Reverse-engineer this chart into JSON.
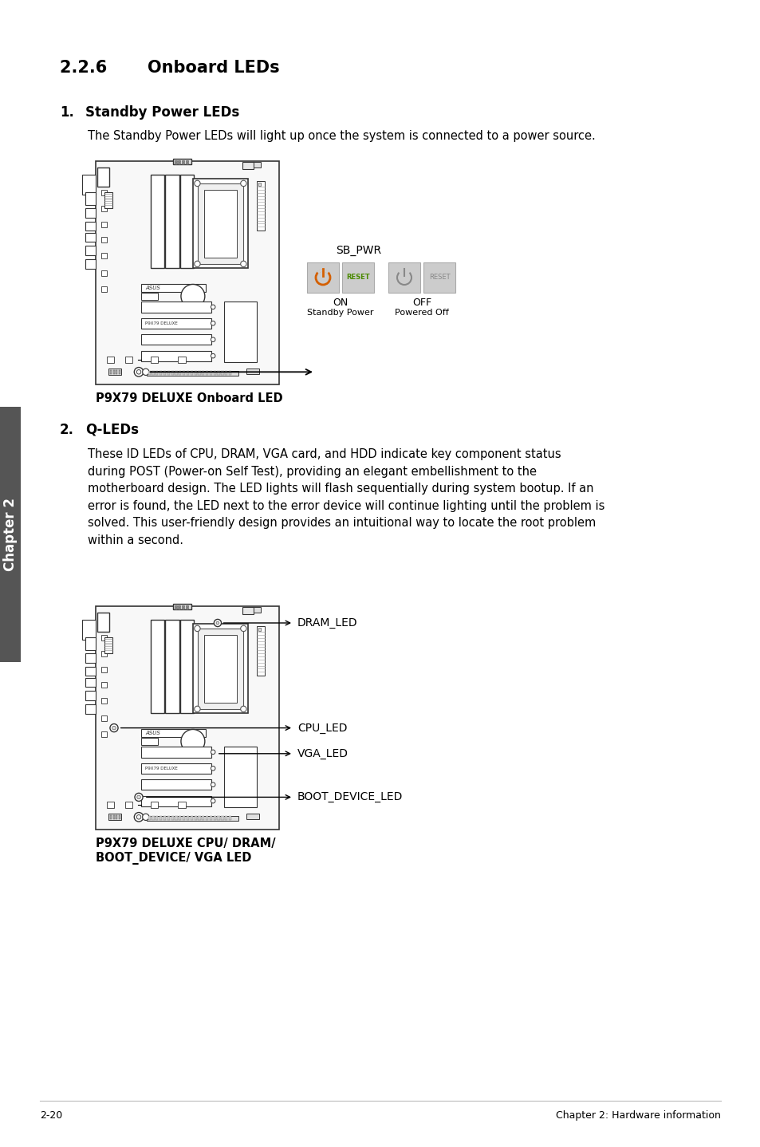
{
  "title": "2.2.6       Onboard LEDs",
  "section1_num": "1.",
  "section1_title": "Standby Power LEDs",
  "section1_body": "The Standby Power LEDs will light up once the system is connected to a power source.",
  "section1_caption": "P9X79 DELUXE Onboard LED",
  "sb_pwr_label": "SB_PWR",
  "on_label": "ON",
  "on_sub": "Standby Power",
  "off_label": "OFF",
  "off_sub": "Powered Off",
  "section2_num": "2.",
  "section2_title": "Q-LEDs",
  "section2_body": "These ID LEDs of CPU, DRAM, VGA card, and HDD indicate key component status\nduring POST (Power-on Self Test), providing an elegant embellishment to the\nmotherboard design. The LED lights will flash sequentially during system bootup. If an\nerror is found, the LED next to the error device will continue lighting until the problem is\nsolved. This user-friendly design provides an intuitional way to locate the root problem\nwithin a second.",
  "section2_caption1": "P9X79 DELUXE CPU/ DRAM/",
  "section2_caption2": "BOOT_DEVICE/ VGA LED",
  "led_labels": [
    "DRAM_LED",
    "CPU_LED",
    "VGA_LED",
    "BOOT_DEVICE_LED"
  ],
  "footer_left": "2-20",
  "footer_right": "Chapter 2: Hardware information",
  "chapter_side": "Chapter 2",
  "bg_color": "#ffffff",
  "text_color": "#000000",
  "side_tab_color": "#555555",
  "orange_color": "#d45f00",
  "green_color": "#4a8a00",
  "gray_btn": "#cccccc",
  "line_color": "#888888"
}
